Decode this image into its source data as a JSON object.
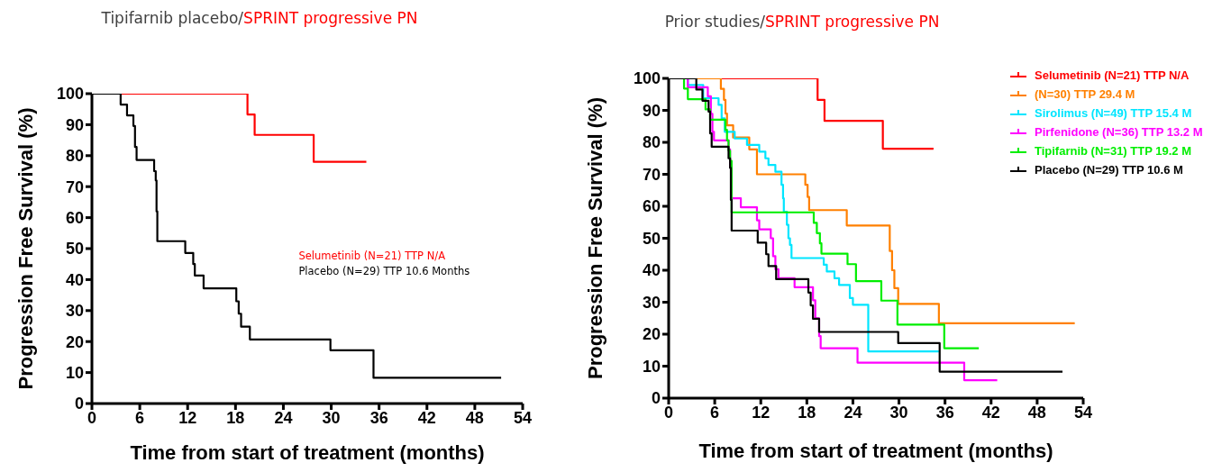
{
  "chart_data": [
    {
      "type": "step",
      "title": "Tipifarnib placebo/SPRINT progressive PN",
      "xlabel": "Time from start of treatment (months)",
      "ylabel": "Progression Free Survival (%)",
      "xlim": [
        0,
        54
      ],
      "xticks": [
        0,
        6,
        12,
        18,
        24,
        30,
        36,
        42,
        48,
        54
      ],
      "ylim": [
        0,
        100
      ],
      "yticks": [
        0,
        10,
        20,
        30,
        40,
        50,
        60,
        70,
        80,
        90,
        100
      ],
      "grid": false,
      "legend": "right",
      "series": [
        {
          "name": "Selumetinib (N=21) TTP N/A",
          "color": "#ff0000",
          "x": [
            0,
            19.5,
            20.4,
            27.8,
            34.4
          ],
          "values": [
            100,
            93.3,
            86.7,
            78,
            78
          ]
        },
        {
          "name": "Placebo (N=29) TTP 10.6 Months",
          "color": "#000000",
          "x": [
            0,
            3.6,
            4.4,
            5.2,
            5.4,
            5.6,
            7.8,
            8,
            8.1,
            8.2,
            11.7,
            12.7,
            12.9,
            14,
            18.1,
            18.4,
            18.7,
            19.8,
            29.9,
            35.3,
            51.3
          ],
          "values": [
            100,
            96.5,
            93,
            89.6,
            82.8,
            78.6,
            75,
            72,
            62,
            52.4,
            48.6,
            45,
            41.3,
            37.2,
            33,
            29,
            24.8,
            20.7,
            17.2,
            8.3,
            8.3
          ]
        }
      ]
    },
    {
      "type": "step",
      "title": "Prior studies/SPRINT progressive PN",
      "xlabel": "Time from start of treatment (months)",
      "ylabel": "Progression Free Survival (%)",
      "xlim": [
        0,
        54
      ],
      "xticks": [
        0,
        6,
        12,
        18,
        24,
        30,
        36,
        42,
        48,
        54
      ],
      "ylim": [
        0,
        100
      ],
      "yticks": [
        0,
        10,
        20,
        30,
        40,
        50,
        60,
        70,
        80,
        90,
        100
      ],
      "grid": false,
      "legend": "top right",
      "series": [
        {
          "name": "Selumetinib (N=21) TTP N/A",
          "color": "#ff0000",
          "x": [
            0,
            19.4,
            20.3,
            27.9,
            34.5
          ],
          "values": [
            100,
            93.3,
            86.7,
            78,
            78
          ]
        },
        {
          "name": "(N=30) TTP 29.4 M",
          "color": "#ff8000",
          "x": [
            0,
            6.8,
            7.2,
            7.4,
            7.6,
            8.4,
            10.5,
            11.5,
            17.8,
            18.1,
            18.3,
            23.2,
            28.8,
            29.1,
            29.4,
            29.9,
            35.2,
            52.9
          ],
          "values": [
            100,
            96.7,
            93.3,
            89,
            85.3,
            81.5,
            77.8,
            70,
            66.7,
            62.9,
            58.8,
            54,
            46,
            40,
            34.4,
            29.5,
            23.4,
            23.4
          ]
        },
        {
          "name": "Sirolimus (N=49) TTP 15.4 M",
          "color": "#00e5ff",
          "x": [
            0,
            2.5,
            4.5,
            6.5,
            6.9,
            7.3,
            8.6,
            10.2,
            11.8,
            12.6,
            13,
            13.9,
            14.7,
            14.9,
            15,
            15.4,
            15.6,
            15.8,
            16,
            20.2,
            20.6,
            21.6,
            22.2,
            23.6,
            24,
            26,
            35.2
          ],
          "values": [
            100,
            97.9,
            93.8,
            91.7,
            87.5,
            83.3,
            81.2,
            79.2,
            77.1,
            75,
            72.9,
            70.8,
            66.7,
            62.5,
            58.3,
            54.2,
            50,
            47.9,
            43.8,
            41.7,
            39.6,
            37.5,
            35.4,
            31.3,
            29.2,
            14.6,
            14.6
          ]
        },
        {
          "name": "Pirfenidone (N=36) TTP 13.2 M",
          "color": "#ff00ff",
          "x": [
            0,
            2.5,
            5.1,
            5.5,
            5.7,
            5.9,
            7.8,
            8,
            8.2,
            9.4,
            11.5,
            11.8,
            13.3,
            13.6,
            13.9,
            14.3,
            16.4,
            18.8,
            19.1,
            19.6,
            19.8,
            24.6,
            38.5,
            42.8
          ],
          "values": [
            100,
            97.2,
            94.4,
            88.9,
            83.3,
            80.6,
            77.8,
            72.2,
            62.5,
            59.7,
            55.6,
            52.8,
            50,
            44.4,
            40.3,
            37.5,
            34.7,
            30.6,
            25,
            19.4,
            15.6,
            11.1,
            5.6,
            5.6
          ]
        },
        {
          "name": "Tipifarnib (N=31) TTP 19.2 M",
          "color": "#00ee00",
          "x": [
            0,
            2,
            2.5,
            4.8,
            5.4,
            7.4,
            7.6,
            7.8,
            8,
            8.2,
            18.9,
            19.3,
            19.7,
            19.9,
            23.3,
            24.4,
            27.7,
            29.8,
            35.9,
            40.4
          ],
          "values": [
            100,
            96.8,
            93.5,
            90.3,
            87.1,
            83.9,
            80.6,
            77.4,
            74.2,
            58.1,
            54.8,
            51.6,
            48.4,
            45.2,
            41.9,
            36.6,
            30.5,
            23,
            15.6,
            15.6
          ]
        },
        {
          "name": "Placebo (N=29) TTP 10.6 M",
          "color": "#000000",
          "x": [
            0,
            3.6,
            4.4,
            5.2,
            5.4,
            5.6,
            7.8,
            8,
            8.1,
            8.2,
            11.6,
            12.7,
            13,
            14,
            18.2,
            18.5,
            18.8,
            19.6,
            29.9,
            35.3,
            51.3
          ],
          "values": [
            100,
            96.5,
            93,
            89.6,
            82.8,
            78.6,
            75,
            72,
            62,
            52.4,
            48.6,
            45,
            41.3,
            37.2,
            33,
            29,
            24.8,
            20.7,
            17.2,
            8.3,
            8.3
          ]
        }
      ]
    }
  ]
}
